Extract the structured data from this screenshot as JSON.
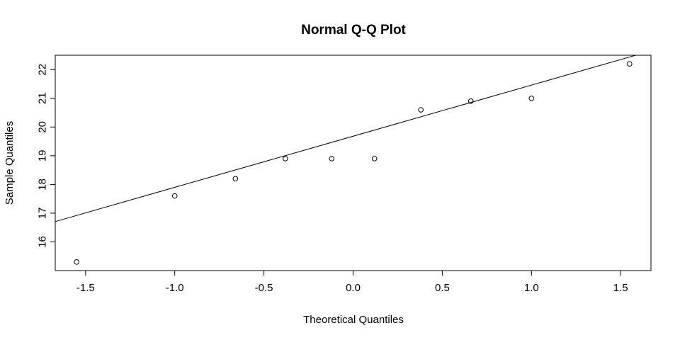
{
  "chart_data": {
    "type": "scatter",
    "title": "Normal Q-Q Plot",
    "xlabel": "Theoretical Quantiles",
    "ylabel": "Sample Quantiles",
    "xlim": [
      -1.67,
      1.67
    ],
    "ylim": [
      15.0,
      22.5
    ],
    "x_ticks": [
      -1.5,
      -1.0,
      -0.5,
      0.0,
      0.5,
      1.0,
      1.5
    ],
    "x_tick_labels": [
      "-1.5",
      "-1.0",
      "-0.5",
      "0.0",
      "0.5",
      "1.0",
      "1.5"
    ],
    "y_ticks": [
      16,
      17,
      18,
      19,
      20,
      21,
      22
    ],
    "y_tick_labels": [
      "16",
      "17",
      "18",
      "19",
      "20",
      "21",
      "22"
    ],
    "grid": false,
    "points": [
      {
        "x": -1.55,
        "y": 15.3
      },
      {
        "x": -1.0,
        "y": 17.6
      },
      {
        "x": -0.66,
        "y": 18.2
      },
      {
        "x": -0.38,
        "y": 18.9
      },
      {
        "x": -0.12,
        "y": 18.9
      },
      {
        "x": 0.12,
        "y": 18.9
      },
      {
        "x": 0.38,
        "y": 20.6
      },
      {
        "x": 0.66,
        "y": 20.9
      },
      {
        "x": 1.0,
        "y": 21.0
      },
      {
        "x": 1.55,
        "y": 22.2
      }
    ],
    "reference_line": {
      "intercept": 19.68,
      "slope": 1.78
    }
  }
}
